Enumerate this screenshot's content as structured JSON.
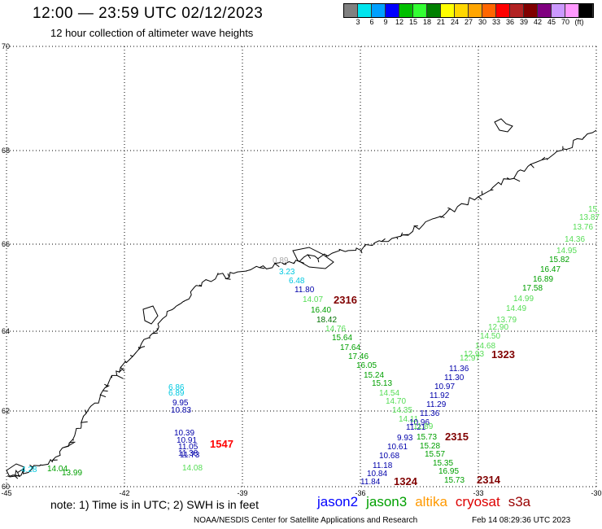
{
  "header": {
    "title": "12:00 — 23:59 UTC 02/12/2023",
    "subtitle": "12 hour collection of altimeter wave heights"
  },
  "legend": {
    "colors": [
      "#808080",
      "#00e5ee",
      "#00a0ff",
      "#0000ff",
      "#00c000",
      "#33ff33",
      "#008000",
      "#ffff00",
      "#ffd700",
      "#ffa500",
      "#ff6600",
      "#ff0000",
      "#b22222",
      "#800000",
      "#800080",
      "#cc99ff",
      "#ff99ff",
      "#000000"
    ],
    "labels": [
      "3",
      "6",
      "9",
      "12",
      "15",
      "18",
      "21",
      "24",
      "27",
      "30",
      "33",
      "36",
      "39",
      "42",
      "45",
      "70",
      "(ft)"
    ]
  },
  "axes": {
    "lat_labels": [
      "70",
      "68",
      "66",
      "64",
      "62",
      "60"
    ],
    "lon_labels": [
      "-45",
      "-42",
      "-39",
      "-36",
      "-33",
      "-30"
    ]
  },
  "tracks": [
    {
      "id": "2316",
      "color": "#800000",
      "values": [
        {
          "v": "0.89",
          "c": "#aaaaaa"
        },
        {
          "v": "3.23",
          "c": "#00c8e0"
        },
        {
          "v": "6.48",
          "c": "#00c8e0"
        },
        {
          "v": "11.80",
          "c": "#0000aa"
        },
        {
          "v": "14.07",
          "c": "#55dd55"
        },
        {
          "v": "16.40",
          "c": "#00a000"
        },
        {
          "v": "18.42",
          "c": "#007000"
        },
        {
          "v": "14.76",
          "c": "#55dd55"
        },
        {
          "v": "15.64",
          "c": "#00a000"
        },
        {
          "v": "17.64",
          "c": "#00a000"
        },
        {
          "v": "17.46",
          "c": "#00a000"
        },
        {
          "v": "16.05",
          "c": "#00a000"
        },
        {
          "v": "15.24",
          "c": "#00a000"
        },
        {
          "v": "15.13",
          "c": "#00a000"
        },
        {
          "v": "14.54",
          "c": "#55dd55"
        },
        {
          "v": "14.70",
          "c": "#55dd55"
        },
        {
          "v": "14.35",
          "c": "#55dd55"
        },
        {
          "v": "14.11",
          "c": "#55dd55"
        },
        {
          "v": "11.21",
          "c": "#0000aa"
        }
      ]
    },
    {
      "id": "1323",
      "color": "#800000",
      "values": [
        {
          "v": "15.",
          "c": "#55dd55"
        },
        {
          "v": "13.87",
          "c": "#55dd55"
        },
        {
          "v": "13.76",
          "c": "#55dd55"
        },
        {
          "v": "14.36",
          "c": "#55dd55"
        },
        {
          "v": "14.95",
          "c": "#55dd55"
        },
        {
          "v": "15.82",
          "c": "#00a000"
        },
        {
          "v": "16.47",
          "c": "#00a000"
        },
        {
          "v": "16.89",
          "c": "#00a000"
        },
        {
          "v": "17.58",
          "c": "#00a000"
        },
        {
          "v": "14.99",
          "c": "#55dd55"
        },
        {
          "v": "14.49",
          "c": "#55dd55"
        },
        {
          "v": "13.79",
          "c": "#55dd55"
        },
        {
          "v": "12.90",
          "c": "#55dd55"
        },
        {
          "v": "14.50",
          "c": "#55dd55"
        },
        {
          "v": "14.68",
          "c": "#55dd55"
        },
        {
          "v": "12.93",
          "c": "#55dd55"
        },
        {
          "v": "12.97",
          "c": "#55dd55"
        },
        {
          "v": "11.36",
          "c": "#0000aa"
        },
        {
          "v": "11.30",
          "c": "#0000aa"
        },
        {
          "v": "10.97",
          "c": "#0000aa"
        },
        {
          "v": "11.92",
          "c": "#0000aa"
        },
        {
          "v": "11.29",
          "c": "#0000aa"
        },
        {
          "v": "11.36",
          "c": "#0000aa"
        },
        {
          "v": "10.96",
          "c": "#0000aa"
        },
        {
          "v": "9.93",
          "c": "#0000aa"
        },
        {
          "v": "10.61",
          "c": "#0000aa"
        },
        {
          "v": "10.68",
          "c": "#0000aa"
        },
        {
          "v": "11.18",
          "c": "#0000aa"
        },
        {
          "v": "10.84",
          "c": "#0000aa"
        },
        {
          "v": "11.84",
          "c": "#0000aa"
        }
      ]
    },
    {
      "id": "1324",
      "color": "#800000",
      "values": []
    },
    {
      "id": "2315",
      "color": "#800000",
      "values": [
        {
          "v": "11.89",
          "c": "#55dd55"
        },
        {
          "v": "15.73",
          "c": "#00a000"
        },
        {
          "v": "15.28",
          "c": "#00a000"
        },
        {
          "v": "15.57",
          "c": "#00a000"
        },
        {
          "v": "15.35",
          "c": "#00a000"
        },
        {
          "v": "16.95",
          "c": "#00a000"
        },
        {
          "v": "15.73",
          "c": "#00a000"
        }
      ]
    },
    {
      "id": "2314",
      "color": "#800000",
      "values": []
    },
    {
      "id": "1547",
      "color": "#ff0000",
      "values": [
        {
          "v": "6.86",
          "c": "#00c8e0"
        },
        {
          "v": "6.89",
          "c": "#00c8e0"
        },
        {
          "v": "9.95",
          "c": "#0000aa"
        },
        {
          "v": "10.83",
          "c": "#0000aa"
        },
        {
          "v": "10.39",
          "c": "#0000aa"
        },
        {
          "v": "10.91",
          "c": "#0000aa"
        },
        {
          "v": "11.05",
          "c": "#0000aa"
        },
        {
          "v": "11.38",
          "c": "#0000aa"
        },
        {
          "v": "11.73",
          "c": "#0000aa"
        },
        {
          "v": "14.08",
          "c": "#55dd55"
        }
      ]
    },
    {
      "id": "sw",
      "color": "#00a000",
      "values": [
        {
          "v": "4.28",
          "c": "#00c8e0"
        },
        {
          "v": "14.04",
          "c": "#00a000"
        },
        {
          "v": "13.99",
          "c": "#00a000"
        }
      ]
    }
  ],
  "footer": {
    "note": "note:  1) Time is in UTC;  2) SWH is in feet",
    "satellites": [
      {
        "name": "jason2",
        "color": "#0000ff"
      },
      {
        "name": "jason3",
        "color": "#00a000"
      },
      {
        "name": "altika",
        "color": "#ff9900"
      },
      {
        "name": "cryosat",
        "color": "#dd0000"
      },
      {
        "name": "s3a",
        "color": "#990000"
      }
    ],
    "credit": "NOAA/NESDIS Center for Satellite Applications and Research",
    "timestamp": "Feb 14 08:29:36 UTC 2023"
  }
}
